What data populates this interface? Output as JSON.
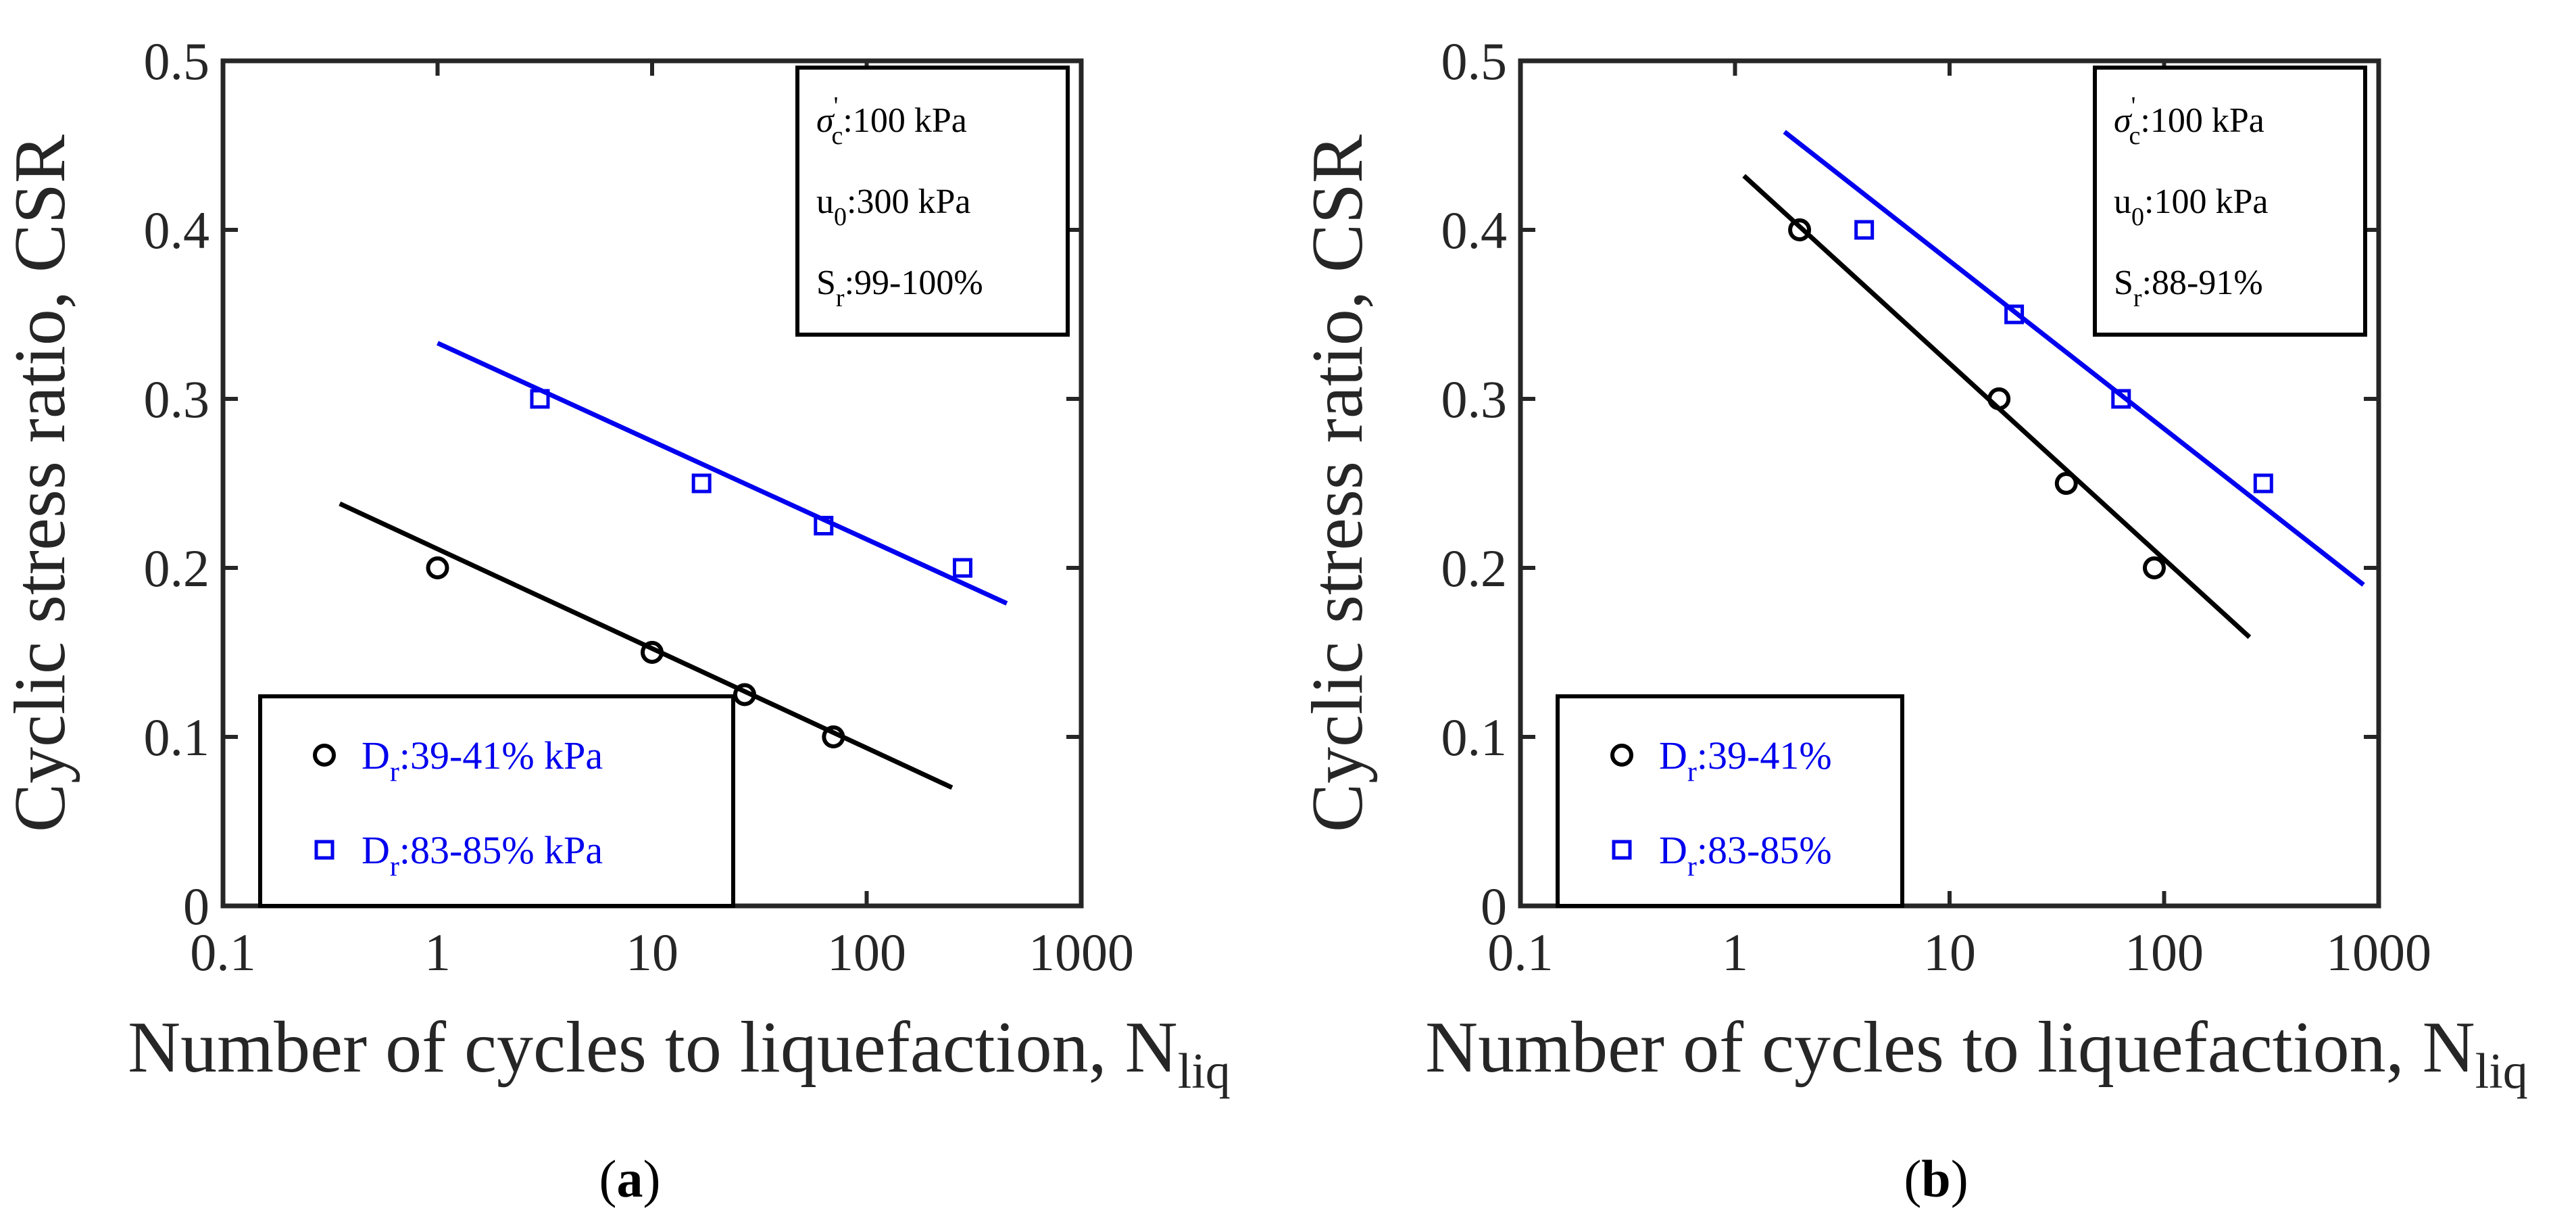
{
  "chart_data": [
    {
      "panel": "a",
      "caption_pre": "(",
      "caption_letter": "a",
      "caption_post": ")",
      "type": "scatter",
      "x_scale": "log",
      "xlim": [
        0.1,
        1000
      ],
      "ylim": [
        0,
        0.5
      ],
      "x_ticks": [
        "0.1",
        "1",
        "10",
        "100",
        "1000"
      ],
      "x_tick_values": [
        0.1,
        1,
        10,
        100,
        1000
      ],
      "y_ticks": [
        "0",
        "0.1",
        "0.2",
        "0.3",
        "0.4",
        "0.5"
      ],
      "y_tick_values": [
        0,
        0.1,
        0.2,
        0.3,
        0.4,
        0.5
      ],
      "ylabel": "Cyclic stress ratio, CSR",
      "xlabel_main": "Number of cycles to liquefaction, N",
      "xlabel_sub": "liq",
      "info": [
        {
          "base": "σ",
          "sup": "'",
          "sub": "c",
          "text": ":100 kPa"
        },
        {
          "base": "u",
          "sup": "",
          "sub": "0",
          "text": ":300 kPa"
        },
        {
          "base": "S",
          "sup": "",
          "sub": "r",
          "text": ":99-100%"
        }
      ],
      "legend_position": "bottom-left",
      "series": [
        {
          "name_base": "D",
          "name_sub": "r",
          "name_text": ":39-41% kPa",
          "color": "#000000",
          "marker": "circle",
          "points": [
            [
              1,
              0.2
            ],
            [
              10,
              0.15
            ],
            [
              27,
              0.125
            ],
            [
              70,
              0.1
            ]
          ],
          "fit": [
            [
              0.35,
              0.238
            ],
            [
              250,
              0.07
            ]
          ]
        },
        {
          "name_base": "D",
          "name_sub": "r",
          "name_text": ":83-85% kPa",
          "color": "#0000ee",
          "marker": "square",
          "points": [
            [
              3,
              0.3
            ],
            [
              17,
              0.25
            ],
            [
              63,
              0.225
            ],
            [
              280,
              0.2
            ]
          ],
          "fit": [
            [
              1,
              0.333
            ],
            [
              450,
              0.179
            ]
          ]
        }
      ]
    },
    {
      "panel": "b",
      "caption_pre": "(",
      "caption_letter": "b",
      "caption_post": ")",
      "type": "scatter",
      "x_scale": "log",
      "xlim": [
        0.1,
        1000
      ],
      "ylim": [
        0,
        0.5
      ],
      "x_ticks": [
        "0.1",
        "1",
        "10",
        "100",
        "1000"
      ],
      "x_tick_values": [
        0.1,
        1,
        10,
        100,
        1000
      ],
      "y_ticks": [
        "0",
        "0.1",
        "0.2",
        "0.3",
        "0.4",
        "0.5"
      ],
      "y_tick_values": [
        0,
        0.1,
        0.2,
        0.3,
        0.4,
        0.5
      ],
      "ylabel": "Cyclic stress ratio, CSR",
      "xlabel_main": "Number of cycles to liquefaction, N",
      "xlabel_sub": "liq",
      "info": [
        {
          "base": "σ",
          "sup": "'",
          "sub": "c",
          "text": ":100 kPa"
        },
        {
          "base": "u",
          "sup": "",
          "sub": "0",
          "text": ":100 kPa"
        },
        {
          "base": "S",
          "sup": "",
          "sub": "r",
          "text": ":88-91%"
        }
      ],
      "legend_position": "bottom-left",
      "series": [
        {
          "name_base": "D",
          "name_sub": "r",
          "name_text": ":39-41%",
          "color": "#000000",
          "marker": "circle",
          "points": [
            [
              2,
              0.4
            ],
            [
              17,
              0.3
            ],
            [
              35,
              0.25
            ],
            [
              90,
              0.2
            ]
          ],
          "fit": [
            [
              1.1,
              0.432
            ],
            [
              250,
              0.159
            ]
          ]
        },
        {
          "name_base": "D",
          "name_sub": "r",
          "name_text": ":83-85%",
          "color": "#0000ee",
          "marker": "square",
          "points": [
            [
              4,
              0.4
            ],
            [
              20,
              0.35
            ],
            [
              63,
              0.3
            ],
            [
              290,
              0.25
            ]
          ],
          "fit": [
            [
              1.7,
              0.458
            ],
            [
              850,
              0.19
            ]
          ]
        }
      ]
    }
  ]
}
